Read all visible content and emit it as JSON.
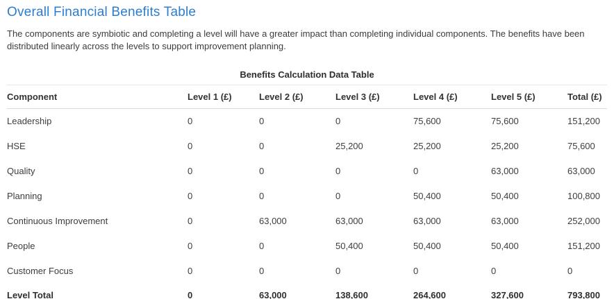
{
  "page": {
    "title": "Overall Financial Benefits Table",
    "description": "The components are symbiotic and completing a level will have a greater impact than completing individual components. The benefits have been distributed linearly across the levels to support improvement planning."
  },
  "table": {
    "caption": "Benefits Calculation Data Table",
    "columns": [
      "Component",
      "Level 1 (£)",
      "Level 2 (£)",
      "Level 3 (£)",
      "Level 4 (£)",
      "Level 5 (£)",
      "Total (£)"
    ],
    "rows": [
      {
        "component": "Leadership",
        "values": [
          "0",
          "0",
          "0",
          "75,600",
          "75,600",
          "151,200"
        ]
      },
      {
        "component": "HSE",
        "values": [
          "0",
          "0",
          "25,200",
          "25,200",
          "25,200",
          "75,600"
        ]
      },
      {
        "component": "Quality",
        "values": [
          "0",
          "0",
          "0",
          "0",
          "63,000",
          "63,000"
        ]
      },
      {
        "component": "Planning",
        "values": [
          "0",
          "0",
          "0",
          "50,400",
          "50,400",
          "100,800"
        ]
      },
      {
        "component": "Continuous Improvement",
        "values": [
          "0",
          "63,000",
          "63,000",
          "63,000",
          "63,000",
          "252,000"
        ]
      },
      {
        "component": "People",
        "values": [
          "0",
          "0",
          "50,400",
          "50,400",
          "50,400",
          "151,200"
        ]
      },
      {
        "component": "Customer Focus",
        "values": [
          "0",
          "0",
          "0",
          "0",
          "0",
          "0"
        ]
      }
    ],
    "total_row": {
      "component": "Level Total",
      "values": [
        "0",
        "63,000",
        "138,600",
        "264,600",
        "327,600",
        "793,800"
      ]
    }
  },
  "colors": {
    "title_blue": "#2b7dd1",
    "body_text": "#3c3c3c",
    "divider_light": "#e3e5e8",
    "divider_dark": "#d7dadd"
  }
}
